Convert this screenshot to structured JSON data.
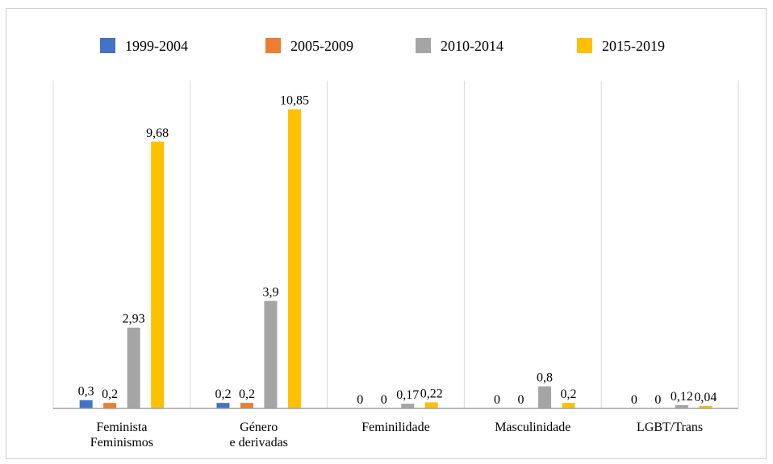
{
  "chart_data": {
    "type": "bar",
    "categories": [
      [
        "Feminista",
        "Feminismos"
      ],
      [
        "Género",
        "e derivadas"
      ],
      [
        "Feminilidade"
      ],
      [
        "Masculinidade"
      ],
      [
        "LGBT/Trans"
      ]
    ],
    "series": [
      {
        "name": "1999-2004",
        "color": "#4472c4",
        "values": [
          0.3,
          0.2,
          0,
          0,
          0
        ],
        "labels": [
          "0,3",
          "0,2",
          "0",
          "0",
          "0"
        ]
      },
      {
        "name": "2005-2009",
        "color": "#ed7d31",
        "values": [
          0.2,
          0.2,
          0,
          0,
          0
        ],
        "labels": [
          "0,2",
          "0,2",
          "0",
          "0",
          "0"
        ]
      },
      {
        "name": "2010-2014",
        "color": "#a5a5a5",
        "values": [
          2.93,
          3.9,
          0.17,
          0.8,
          0.12
        ],
        "labels": [
          "2,93",
          "3,9",
          "0,17",
          "0,8",
          "0,12"
        ]
      },
      {
        "name": "2015-2019",
        "color": "#ffc000",
        "values": [
          9.68,
          10.85,
          0.22,
          0.2,
          0.04
        ],
        "labels": [
          "9,68",
          "10,85",
          "0,22",
          "0,2",
          "0,04"
        ]
      }
    ],
    "ylim": [
      0,
      12
    ],
    "legend_position": "top",
    "grid": "vertical category separators"
  }
}
